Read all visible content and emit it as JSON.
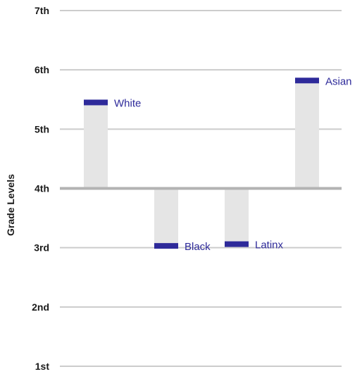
{
  "chart_data": {
    "type": "bar",
    "ylabel": "Grade Levels",
    "baseline": 4,
    "ylim": [
      1,
      7
    ],
    "yticks": [
      {
        "value": 1,
        "label": "1st"
      },
      {
        "value": 2,
        "label": "2nd"
      },
      {
        "value": 3,
        "label": "3rd"
      },
      {
        "value": 4,
        "label": "4th"
      },
      {
        "value": 5,
        "label": "5th"
      },
      {
        "value": 6,
        "label": "6th"
      },
      {
        "value": 7,
        "label": "7th"
      }
    ],
    "categories": [
      "White",
      "Black",
      "Latinx",
      "Asian"
    ],
    "values": [
      5.45,
      3.03,
      3.06,
      5.82
    ],
    "grid": true,
    "colors": {
      "bar": "#e5e5e5",
      "marker": "#2e2a9a",
      "label": "#2e2a9a",
      "grid": "#cccccc",
      "baseline": "#b3b3b3"
    }
  }
}
